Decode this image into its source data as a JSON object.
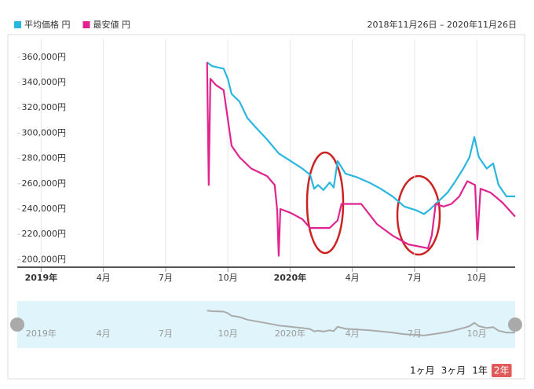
{
  "chart_data": {
    "type": "line",
    "date_range": "2018年11月26日 – 2020年11月26日",
    "series": [
      {
        "name": "平均価格 円",
        "color": "#29b6e0",
        "x": [
          8.0,
          8.24,
          8.8,
          9.0,
          9.18,
          9.56,
          9.94,
          10.32,
          10.89,
          11.45,
          12.02,
          12.59,
          12.97,
          13.16,
          13.35,
          13.61,
          13.91,
          14.1,
          14.29,
          14.67,
          15.24,
          15.81,
          16.37,
          16.94,
          17.51,
          18.08,
          18.46,
          18.76,
          19.21,
          19.59,
          19.97,
          20.35,
          20.65,
          20.88,
          21.1,
          21.48,
          21.79,
          22.05,
          22.43,
          22.85
        ],
        "values": [
          356000,
          353000,
          351000,
          343000,
          331000,
          325000,
          312000,
          305000,
          295000,
          284000,
          278000,
          272000,
          267000,
          256000,
          259000,
          255000,
          261000,
          257000,
          278000,
          268000,
          265000,
          261000,
          256000,
          250000,
          242000,
          239000,
          236000,
          240000,
          247000,
          253000,
          262000,
          272000,
          281000,
          297000,
          281000,
          272000,
          276000,
          259000,
          250000,
          250000
        ]
      },
      {
        "name": "最安値 円",
        "color": "#e0238f",
        "x": [
          8.0,
          8.08,
          8.16,
          8.43,
          8.8,
          8.99,
          9.18,
          9.56,
          10.13,
          10.89,
          11.26,
          11.38,
          11.45,
          11.53,
          12.02,
          12.59,
          12.97,
          13.91,
          14.29,
          14.48,
          15.43,
          16.19,
          16.94,
          17.7,
          18.65,
          18.83,
          19.02,
          19.4,
          19.78,
          20.16,
          20.54,
          20.92,
          21.03,
          21.18,
          21.67,
          22.24,
          22.85
        ],
        "values": [
          356000,
          259000,
          343000,
          338000,
          334000,
          312000,
          290000,
          281000,
          272000,
          266000,
          259000,
          239000,
          203000,
          240000,
          237000,
          232000,
          225000,
          225000,
          231000,
          244000,
          244000,
          228000,
          219000,
          212000,
          209000,
          219000,
          244000,
          242000,
          244000,
          250000,
          262000,
          259000,
          216000,
          256000,
          253000,
          245000,
          234000
        ]
      }
    ],
    "xlim": [
      -1.15,
      22.85
    ],
    "xticks": [
      {
        "value": 0,
        "label": "2019年"
      },
      {
        "value": 3,
        "label": "4月"
      },
      {
        "value": 6,
        "label": "7月"
      },
      {
        "value": 9,
        "label": "10月"
      },
      {
        "value": 12,
        "label": "2020年"
      },
      {
        "value": 15,
        "label": "4月"
      },
      {
        "value": 18,
        "label": "7月"
      },
      {
        "value": 21,
        "label": "10月"
      }
    ],
    "ylim": [
      194000,
      368000
    ],
    "yticks": [
      {
        "value": 200000,
        "label": "200,000円"
      },
      {
        "value": 220000,
        "label": "220,000円"
      },
      {
        "value": 240000,
        "label": "240,000円"
      },
      {
        "value": 260000,
        "label": "260,000円"
      },
      {
        "value": 280000,
        "label": "280,000円"
      },
      {
        "value": 300000,
        "label": "300,000円"
      },
      {
        "value": 320000,
        "label": "320,000円"
      },
      {
        "value": 340000,
        "label": "340,000円"
      },
      {
        "value": 360000,
        "label": "360,000円"
      }
    ],
    "grid": true,
    "range_buttons": [
      "1ヶ月",
      "3ヶ月",
      "1年",
      "2年"
    ],
    "selected_range": 3
  }
}
